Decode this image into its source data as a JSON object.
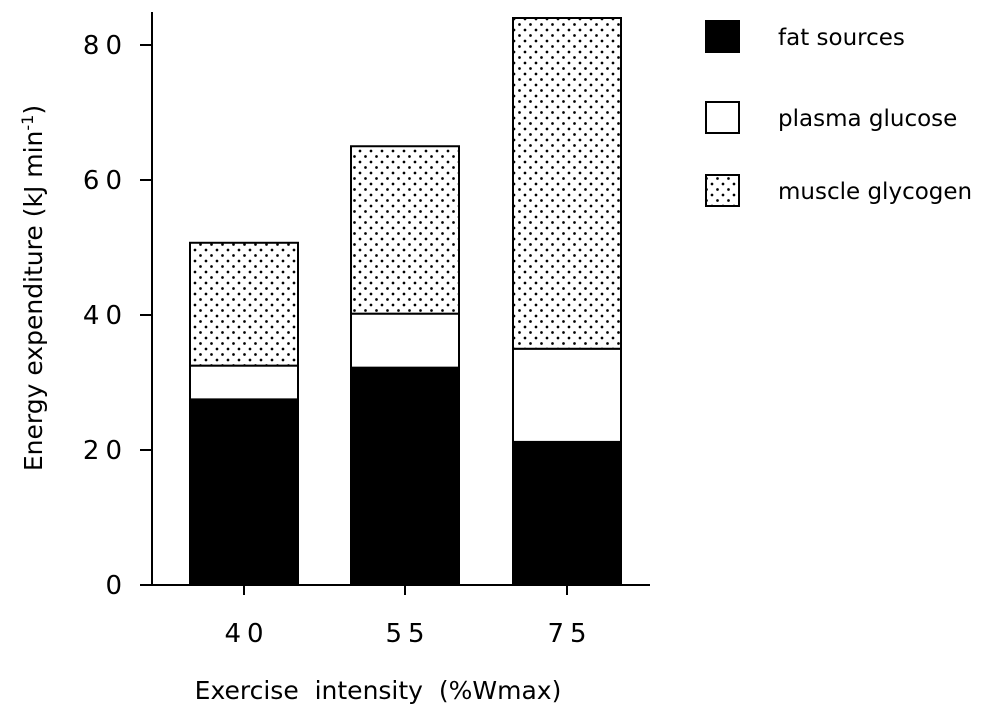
{
  "chart_data": {
    "type": "bar",
    "stacked": true,
    "categories": [
      "40",
      "55",
      "75"
    ],
    "series": [
      {
        "name": "fat sources",
        "values": [
          27.5,
          32.2,
          21.2
        ],
        "fill": "solid-black"
      },
      {
        "name": "plasma glucose",
        "values": [
          5.0,
          8.0,
          13.8
        ],
        "fill": "white"
      },
      {
        "name": "muscle glycogen",
        "values": [
          18.2,
          24.8,
          49.0
        ],
        "fill": "dotted"
      }
    ],
    "xlabel": "Exercise  intensity  (%Wmax)",
    "ylabel": {
      "main": "Energy  expenditure  (kJ min",
      "sup": "-1",
      "close": ")"
    },
    "ylim": [
      0,
      84
    ],
    "yticks": [
      0,
      20,
      40,
      60,
      80
    ],
    "grid": false,
    "legend_position": "top-right"
  },
  "colors": {
    "fat": "#000000",
    "glucose": "#ffffff",
    "glycogen_bg": "#ffffff",
    "glycogen_dot": "#000000",
    "axis": "#000000"
  }
}
